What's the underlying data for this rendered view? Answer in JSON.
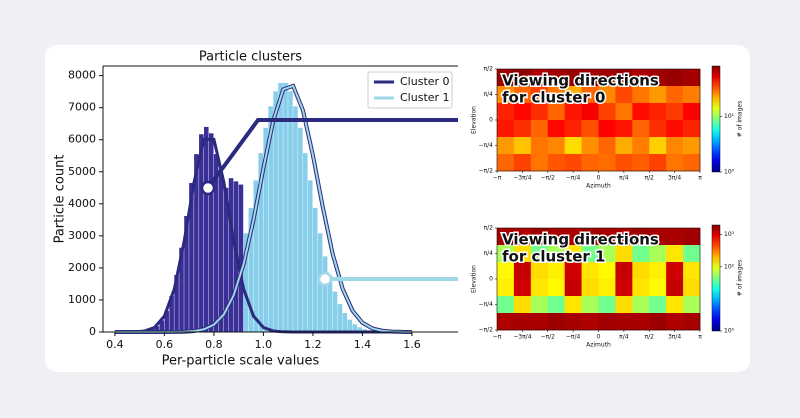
{
  "chart_data": [
    {
      "type": "histogram",
      "title": "Particle clusters",
      "xlabel": "Per-particle scale values",
      "ylabel": "Particle count",
      "xlim": [
        0.352,
        1.786
      ],
      "ylim": [
        0,
        8300
      ],
      "xticks": [
        0.4,
        0.6,
        0.8,
        {
          "value": 1,
          "label": "1.0"
        },
        1.2,
        1.4,
        1.6
      ],
      "yticks": [
        0,
        1000,
        2000,
        3000,
        4000,
        5000,
        6000,
        7000,
        8000
      ],
      "legend": "upper right",
      "histograms": [
        {
          "color": "#3a2f96",
          "bins": [
            0.5,
            0.52,
            0.54,
            0.56,
            0.58,
            0.6,
            0.62,
            0.64,
            0.66,
            0.68,
            0.7,
            0.72,
            0.74,
            0.76,
            0.78,
            0.8,
            0.82,
            0.84,
            0.86,
            0.88,
            0.9,
            0.92
          ],
          "values": [
            20,
            40,
            90,
            180,
            360,
            660,
            1120,
            1780,
            2630,
            3620,
            4650,
            5550,
            6170,
            6400,
            6200,
            5550,
            4900,
            4500,
            4800,
            4700,
            4600
          ]
        },
        {
          "color": "#87ceeb",
          "bins": [
            0.92,
            0.94,
            0.96,
            0.98,
            1.0,
            1.02,
            1.04,
            1.06,
            1.08,
            1.1,
            1.12,
            1.14,
            1.16,
            1.18,
            1.2,
            1.22,
            1.24,
            1.26,
            1.28,
            1.3,
            1.32,
            1.34,
            1.36,
            1.38,
            1.4,
            1.42
          ],
          "values": [
            3080,
            3870,
            4730,
            5580,
            6370,
            7040,
            7510,
            7770,
            7770,
            7510,
            7040,
            6370,
            5580,
            4730,
            3870,
            3080,
            2360,
            1760,
            1260,
            870,
            590,
            385,
            240,
            147,
            86
          ]
        }
      ],
      "series": [
        {
          "name": "Cluster 0",
          "color": "#2b2a7e",
          "x": [
            0.4,
            0.44,
            0.48,
            0.52,
            0.56,
            0.6,
            0.64,
            0.68,
            0.72,
            0.76,
            0.8,
            0.84,
            0.88,
            0.92,
            0.96,
            1.0,
            1.04,
            1.08,
            1.12,
            1.16,
            1.2,
            1.24,
            1.28,
            1.32,
            1.36,
            1.4,
            1.44,
            1.48,
            1.52,
            1.56,
            1.6
          ],
          "values": [
            0,
            1,
            6,
            32,
            141,
            494,
            1340,
            2840,
            4680,
            6010,
            6010,
            4680,
            2840,
            1340,
            494,
            141,
            32,
            6,
            1,
            0,
            0,
            0,
            0,
            0,
            0,
            0,
            0,
            0,
            0,
            0,
            0
          ]
        },
        {
          "name": "Cluster 1",
          "color": "#9fd8e6",
          "x": [
            0.4,
            0.44,
            0.48,
            0.52,
            0.56,
            0.6,
            0.64,
            0.68,
            0.72,
            0.76,
            0.8,
            0.84,
            0.88,
            0.92,
            0.96,
            1.0,
            1.04,
            1.08,
            1.12,
            1.16,
            1.2,
            1.24,
            1.28,
            1.32,
            1.36,
            1.4,
            1.44,
            1.48,
            1.52,
            1.56,
            1.6
          ],
          "values": [
            0,
            0,
            0,
            0,
            0,
            1,
            2,
            8,
            29,
            86,
            230,
            546,
            1150,
            2120,
            3500,
            5110,
            6600,
            7570,
            7680,
            6910,
            5510,
            3890,
            2430,
            1350,
            663,
            288,
            112,
            38,
            12,
            3,
            1
          ]
        }
      ]
    },
    {
      "type": "heatmap",
      "title": [
        "Viewing directions",
        "for cluster 0"
      ],
      "xlabel": "Azimuth",
      "ylabel": "Elevation",
      "colorbar_label": "# of images",
      "colormap": "jet",
      "colorscale": "log",
      "clim": [
        1,
        80
      ],
      "xlim": [
        -3.1416,
        3.1416
      ],
      "ylim": [
        -1.5708,
        1.5708
      ],
      "xticks": [
        {
          "value": -3.1416,
          "label": "−π"
        },
        {
          "value": -2.3562,
          "label": "−3π/4"
        },
        {
          "value": -1.5708,
          "label": "−π/2"
        },
        {
          "value": -0.7854,
          "label": "−π/4"
        },
        0,
        {
          "value": 0.7854,
          "label": "π/4"
        },
        {
          "value": 1.5708,
          "label": "π/2"
        },
        {
          "value": 2.3562,
          "label": "3π/4"
        },
        {
          "value": 3.1416,
          "label": "π"
        }
      ],
      "yticks": [
        {
          "value": 1.5708,
          "label": "π/2"
        },
        {
          "value": 0.7854,
          "label": "π/4"
        },
        0,
        {
          "value": -0.7854,
          "label": "−π/4"
        },
        {
          "value": -1.5708,
          "label": "−π/2"
        }
      ],
      "cticks": [
        {
          "value": 1,
          "label": "10⁰"
        },
        {
          "value": 10,
          "label": "10¹"
        }
      ],
      "values": [
        [
          70,
          75,
          65,
          70,
          72,
          68,
          70,
          74,
          66,
          70,
          72,
          68
        ],
        [
          25,
          30,
          35,
          28,
          22,
          30,
          26,
          34,
          28,
          24,
          30,
          27
        ],
        [
          40,
          45,
          38,
          30,
          42,
          48,
          35,
          28,
          44,
          40,
          36,
          46
        ],
        [
          42,
          38,
          30,
          45,
          40,
          33,
          46,
          42,
          30,
          38,
          44,
          40
        ],
        [
          24,
          20,
          28,
          26,
          18,
          25,
          30,
          22,
          27,
          19,
          26,
          24
        ],
        [
          30,
          35,
          28,
          32,
          34,
          30,
          29,
          33,
          31,
          35,
          28,
          30
        ]
      ]
    },
    {
      "type": "heatmap",
      "title": [
        "Viewing directions",
        "for cluster 1"
      ],
      "xlabel": "Azimuth",
      "ylabel": "Elevation",
      "colorbar_label": "# of images",
      "colormap": "jet",
      "colorscale": "log",
      "clim": [
        1,
        2000
      ],
      "xlim": [
        -3.1416,
        3.1416
      ],
      "ylim": [
        -1.5708,
        1.5708
      ],
      "xticks": [
        {
          "value": -3.1416,
          "label": "−π"
        },
        {
          "value": -2.3562,
          "label": "−3π/4"
        },
        {
          "value": -1.5708,
          "label": "−π/2"
        },
        {
          "value": -0.7854,
          "label": "−π/4"
        },
        0,
        {
          "value": 0.7854,
          "label": "π/4"
        },
        {
          "value": 1.5708,
          "label": "π/2"
        },
        {
          "value": 2.3562,
          "label": "3π/4"
        },
        {
          "value": 3.1416,
          "label": "π"
        }
      ],
      "yticks": [
        {
          "value": 1.5708,
          "label": "π/2"
        },
        {
          "value": 0.7854,
          "label": "π/4"
        },
        0,
        {
          "value": -0.7854,
          "label": "−π/4"
        },
        {
          "value": -1.5708,
          "label": "−π/2"
        }
      ],
      "cticks": [
        {
          "value": 1,
          "label": "10⁰"
        },
        {
          "value": 100,
          "label": "10²"
        },
        {
          "value": 1000,
          "label": "10³"
        }
      ],
      "values": [
        [
          1500,
          1400,
          1600,
          1500,
          1450,
          1550,
          1500,
          1400,
          1600,
          1500,
          1450,
          1550
        ],
        [
          60,
          150,
          40,
          60,
          140,
          40,
          60,
          150,
          40,
          60,
          140,
          40
        ],
        [
          120,
          1200,
          150,
          130,
          1100,
          140,
          120,
          1200,
          150,
          130,
          1100,
          140
        ],
        [
          130,
          1100,
          140,
          120,
          1200,
          150,
          130,
          1100,
          140,
          120,
          1200,
          150
        ],
        [
          40,
          150,
          60,
          40,
          140,
          60,
          40,
          150,
          60,
          40,
          140,
          60
        ],
        [
          1400,
          1500,
          1450,
          1600,
          1500,
          1400,
          1550,
          1500,
          1450,
          1600,
          1400,
          1500
        ]
      ]
    }
  ]
}
